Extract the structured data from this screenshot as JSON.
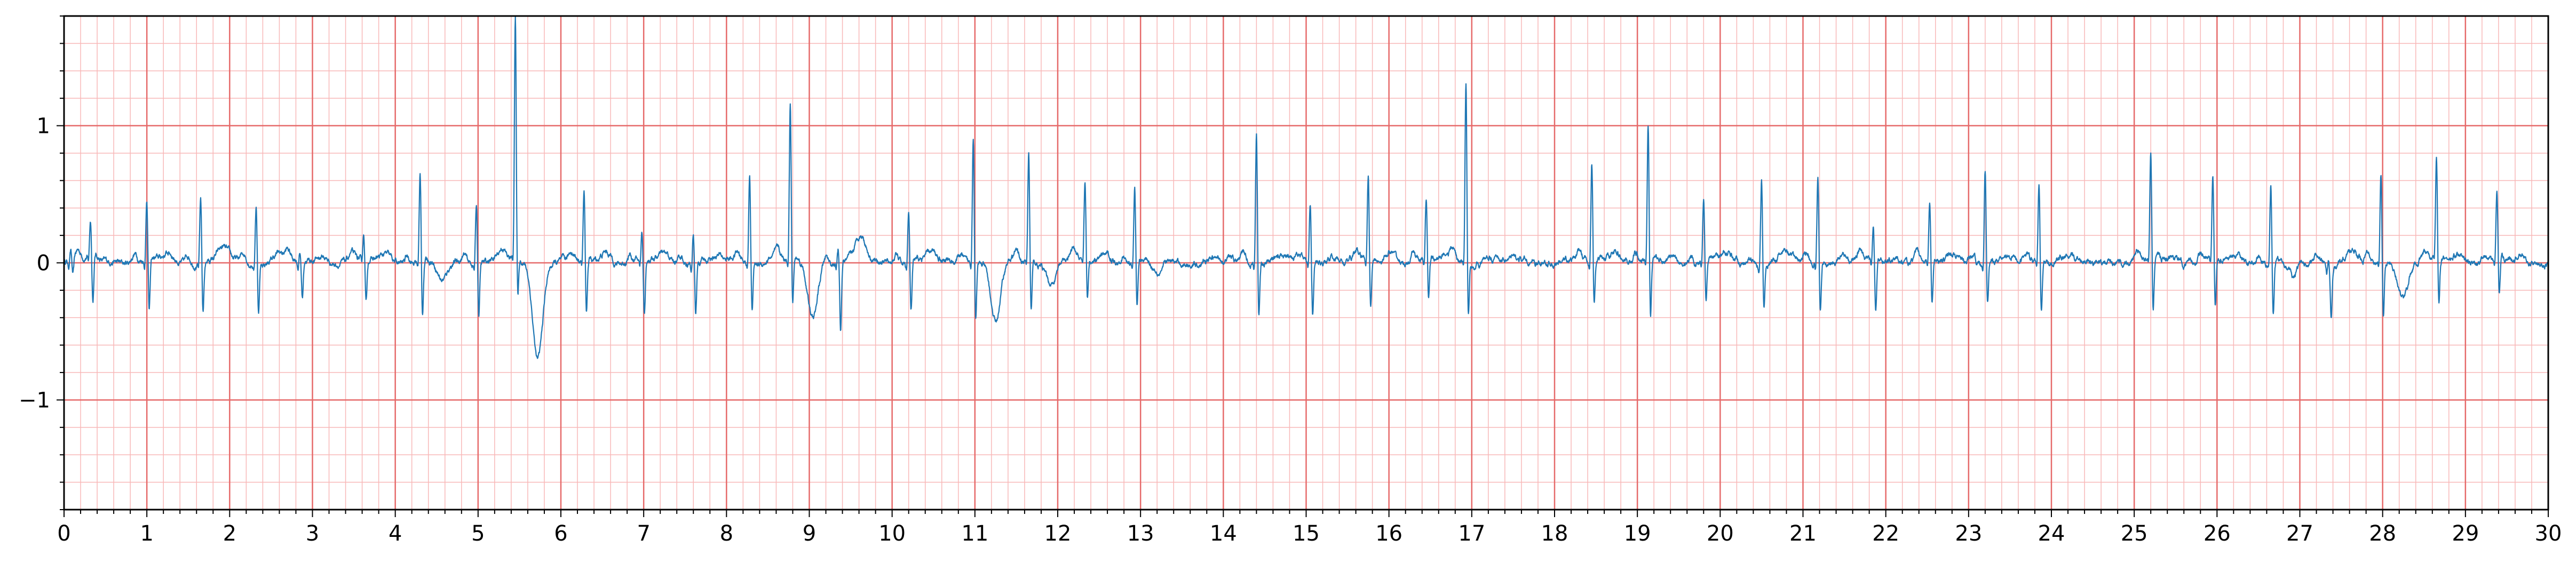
{
  "chart_data": {
    "type": "line",
    "title": "",
    "xlabel": "",
    "ylabel": "",
    "xlim": [
      0,
      30
    ],
    "ylim": [
      -1.8,
      1.8
    ],
    "x_ticks": [
      "0",
      "1",
      "2",
      "3",
      "4",
      "5",
      "6",
      "7",
      "8",
      "9",
      "10",
      "11",
      "12",
      "13",
      "14",
      "15",
      "16",
      "17",
      "18",
      "19",
      "20",
      "21",
      "22",
      "23",
      "24",
      "25",
      "26",
      "27",
      "28",
      "29",
      "30"
    ],
    "y_ticks": [
      {
        "value": 1,
        "label": "1"
      },
      {
        "value": 0,
        "label": "0"
      },
      {
        "value": -1,
        "label": "−1"
      }
    ],
    "grid": {
      "major_x_step": 1,
      "major_y_step": 1,
      "minor_x_step": 0.2,
      "minor_y_step": 0.2,
      "major_color": "#e66a6a",
      "minor_color": "#f8b8b8"
    },
    "line_color": "#1f77b4",
    "series": [
      {
        "beats": [
          {
            "t": 0.08,
            "r": 0.08,
            "s": -0.12,
            "t_wave": 0.05
          },
          {
            "t": 0.32,
            "r": 0.25,
            "s": -0.35,
            "t_wave": 0.02
          },
          {
            "t": 1.0,
            "r": 0.45,
            "s": -0.38,
            "t_wave": 0.06
          },
          {
            "t": 1.65,
            "r": 0.47,
            "s": -0.38,
            "t_wave": 0.08
          },
          {
            "t": 2.32,
            "r": 0.44,
            "s": -0.35,
            "t_wave": 0.06
          },
          {
            "t": 2.85,
            "r": 0.05,
            "s": -0.28,
            "t_wave": 0.05
          },
          {
            "t": 3.62,
            "r": 0.18,
            "s": -0.32,
            "t_wave": 0.05
          },
          {
            "t": 4.3,
            "r": 0.64,
            "s": -0.4,
            "t_wave": -0.15
          },
          {
            "t": 4.98,
            "r": 0.44,
            "s": -0.38,
            "t_wave": 0.04
          },
          {
            "t": 5.45,
            "r": 1.8,
            "s": -0.3,
            "t_wave": -0.7
          },
          {
            "t": 6.28,
            "r": 0.5,
            "s": -0.4,
            "t_wave": 0.08
          },
          {
            "t": 6.98,
            "r": 0.21,
            "s": -0.4,
            "t_wave": 0.04
          },
          {
            "t": 7.6,
            "r": 0.21,
            "s": -0.38,
            "t_wave": 0.03
          },
          {
            "t": 8.28,
            "r": 0.66,
            "s": -0.35,
            "t_wave": 0.04
          },
          {
            "t": 8.77,
            "r": 1.15,
            "s": -0.35,
            "t_wave": -0.42
          },
          {
            "t": 9.35,
            "r": 0.1,
            "s": -0.5,
            "t_wave": 0.18
          },
          {
            "t": 10.2,
            "r": 0.38,
            "s": -0.37,
            "t_wave": 0.05
          },
          {
            "t": 10.98,
            "r": 0.95,
            "s": -0.4,
            "t_wave": -0.45
          },
          {
            "t": 11.65,
            "r": 0.8,
            "s": -0.37,
            "t_wave": -0.15
          },
          {
            "t": 12.33,
            "r": 0.55,
            "s": -0.3,
            "t_wave": 0.06
          },
          {
            "t": 12.93,
            "r": 0.55,
            "s": -0.35,
            "t_wave": -0.08
          },
          {
            "t": 14.4,
            "r": 0.95,
            "s": -0.4,
            "t_wave": 0.04
          },
          {
            "t": 15.05,
            "r": 0.45,
            "s": -0.38,
            "t_wave": 0.05
          },
          {
            "t": 15.75,
            "r": 0.64,
            "s": -0.35,
            "t_wave": 0.08
          },
          {
            "t": 16.45,
            "r": 0.47,
            "s": -0.3,
            "t_wave": 0.06
          },
          {
            "t": 16.93,
            "r": 1.32,
            "s": -0.42,
            "t_wave": 0.03
          },
          {
            "t": 18.45,
            "r": 0.72,
            "s": -0.35,
            "t_wave": 0.1
          },
          {
            "t": 19.13,
            "r": 1.0,
            "s": -0.45,
            "t_wave": 0.04
          },
          {
            "t": 19.8,
            "r": 0.47,
            "s": -0.3,
            "t_wave": 0.06
          },
          {
            "t": 20.5,
            "r": 0.62,
            "s": -0.35,
            "t_wave": 0.05
          },
          {
            "t": 21.18,
            "r": 0.65,
            "s": -0.38,
            "t_wave": 0.05
          },
          {
            "t": 21.85,
            "r": 0.23,
            "s": -0.4,
            "t_wave": 0.05
          },
          {
            "t": 22.53,
            "r": 0.41,
            "s": -0.33,
            "t_wave": 0.06
          },
          {
            "t": 23.2,
            "r": 0.68,
            "s": -0.33,
            "t_wave": 0.05
          },
          {
            "t": 23.85,
            "r": 0.59,
            "s": -0.38,
            "t_wave": 0.04
          },
          {
            "t": 25.2,
            "r": 0.78,
            "s": -0.4,
            "t_wave": 0.04
          },
          {
            "t": 25.95,
            "r": 0.62,
            "s": -0.38,
            "t_wave": 0.03
          },
          {
            "t": 26.65,
            "r": 0.57,
            "s": -0.38,
            "t_wave": -0.12
          },
          {
            "t": 27.35,
            "r": 0.05,
            "s": -0.37,
            "t_wave": 0.05
          },
          {
            "t": 27.98,
            "r": 0.68,
            "s": -0.4,
            "t_wave": -0.25
          },
          {
            "t": 28.65,
            "r": 0.73,
            "s": -0.35,
            "t_wave": 0.06
          },
          {
            "t": 29.38,
            "r": 0.48,
            "s": -0.28,
            "t_wave": 0.04
          }
        ]
      }
    ]
  }
}
